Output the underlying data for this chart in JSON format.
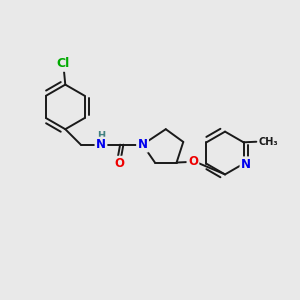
{
  "bg_color": "#e9e9e9",
  "bond_color": "#1a1a1a",
  "bond_width": 1.4,
  "atom_colors": {
    "N": "#0000ee",
    "O": "#ee0000",
    "Cl": "#00aa00",
    "H": "#408080"
  },
  "font_size": 8.5,
  "fig_size": [
    3.0,
    3.0
  ],
  "dpi": 100,
  "xlim": [
    0,
    10
  ],
  "ylim": [
    0,
    10
  ]
}
